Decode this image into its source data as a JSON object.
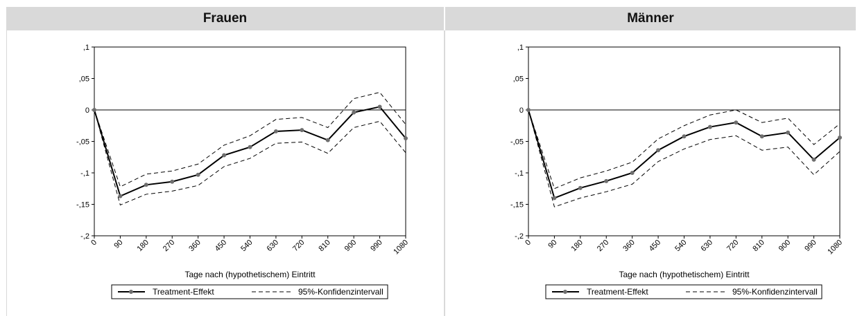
{
  "panels": [
    {
      "title": "Frauen"
    },
    {
      "title": "Männer"
    }
  ],
  "chart_data": [
    {
      "type": "line",
      "title": "Frauen",
      "xlabel": "Tage nach (hypothetischem) Eintritt",
      "ylabel": "",
      "categories": [
        "0",
        "90",
        "180",
        "270",
        "360",
        "450",
        "540",
        "630",
        "720",
        "810",
        "900",
        "990",
        "1080"
      ],
      "x": [
        0,
        90,
        180,
        270,
        360,
        450,
        540,
        630,
        720,
        810,
        900,
        990,
        1080
      ],
      "yticks": [
        0.1,
        0.05,
        0,
        -0.05,
        -0.1,
        -0.15,
        -0.2
      ],
      "ytick_labels": [
        ",1",
        ",05",
        "0",
        "-,05",
        "-,1",
        "-,15",
        "-,2"
      ],
      "ylim": [
        -0.2,
        0.1
      ],
      "xlim": [
        0,
        1080
      ],
      "reference_line": 0,
      "grid": false,
      "legend_position": "bottom",
      "series": [
        {
          "name": "Treatment-Effekt",
          "style": "solid-with-markers",
          "color": "#000000",
          "marker_color": "#6e6e6e",
          "values": [
            0,
            -0.137,
            -0.119,
            -0.114,
            -0.103,
            -0.072,
            -0.059,
            -0.034,
            -0.032,
            -0.048,
            -0.004,
            0.005,
            -0.045
          ]
        },
        {
          "name": "95%-Konfidenzintervall",
          "style": "dashed",
          "color": "#000000",
          "upper": [
            0,
            -0.122,
            -0.102,
            -0.097,
            -0.086,
            -0.056,
            -0.041,
            -0.015,
            -0.012,
            -0.028,
            0.018,
            0.028,
            -0.023
          ],
          "lower": [
            0,
            -0.151,
            -0.134,
            -0.129,
            -0.12,
            -0.09,
            -0.077,
            -0.053,
            -0.051,
            -0.069,
            -0.028,
            -0.018,
            -0.068
          ]
        }
      ]
    },
    {
      "type": "line",
      "title": "Männer",
      "xlabel": "Tage nach (hypothetischem) Eintritt",
      "ylabel": "",
      "categories": [
        "0",
        "90",
        "180",
        "270",
        "360",
        "450",
        "540",
        "630",
        "720",
        "810",
        "900",
        "990",
        "1080"
      ],
      "x": [
        0,
        90,
        180,
        270,
        360,
        450,
        540,
        630,
        720,
        810,
        900,
        990,
        1080
      ],
      "yticks": [
        0.1,
        0.05,
        0,
        -0.05,
        -0.1,
        -0.15,
        -0.2
      ],
      "ytick_labels": [
        ",1",
        ",05",
        "0",
        "-,05",
        "-,1",
        "-,15",
        "-,2"
      ],
      "ylim": [
        -0.2,
        0.1
      ],
      "xlim": [
        0,
        1080
      ],
      "reference_line": 0,
      "grid": false,
      "legend_position": "bottom",
      "series": [
        {
          "name": "Treatment-Effekt",
          "style": "solid-with-markers",
          "color": "#000000",
          "marker_color": "#6e6e6e",
          "values": [
            0,
            -0.14,
            -0.124,
            -0.113,
            -0.1,
            -0.064,
            -0.042,
            -0.027,
            -0.02,
            -0.042,
            -0.036,
            -0.079,
            -0.044
          ]
        },
        {
          "name": "95%-Konfidenzintervall",
          "style": "dashed",
          "color": "#000000",
          "upper": [
            0,
            -0.125,
            -0.108,
            -0.097,
            -0.083,
            -0.046,
            -0.025,
            -0.008,
            0.0,
            -0.02,
            -0.013,
            -0.055,
            -0.022
          ],
          "lower": [
            0,
            -0.154,
            -0.14,
            -0.13,
            -0.118,
            -0.082,
            -0.062,
            -0.047,
            -0.041,
            -0.064,
            -0.059,
            -0.103,
            -0.066
          ]
        }
      ]
    }
  ]
}
